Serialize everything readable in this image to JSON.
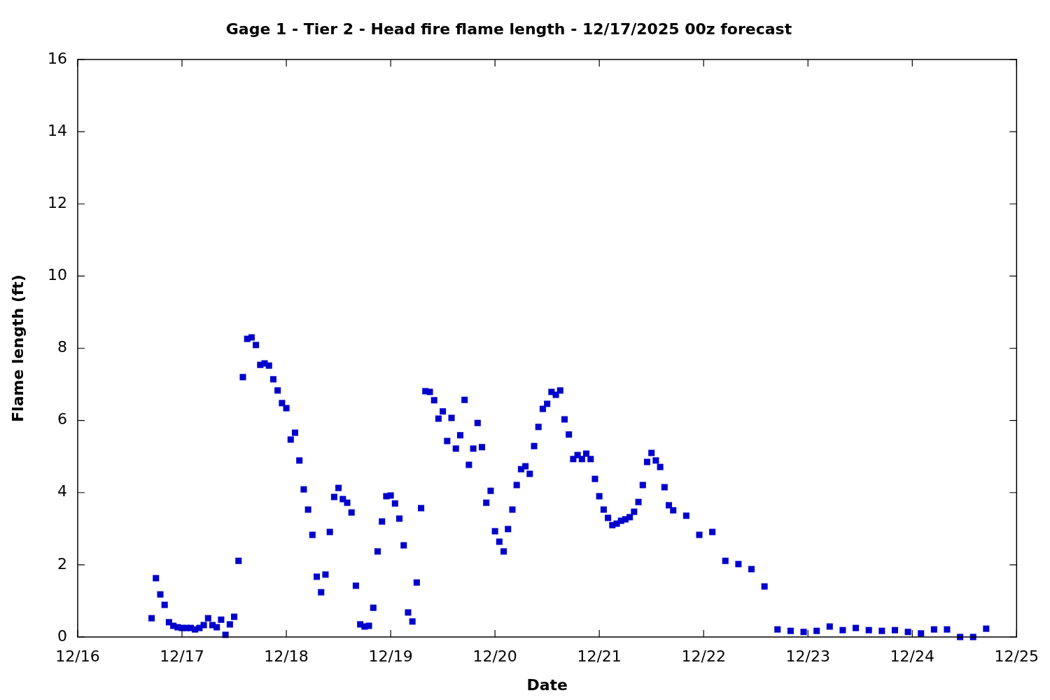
{
  "chart_data": {
    "type": "scatter",
    "title": "Gage 1 - Tier 2 - Head fire flame length - 12/17/2025 00z forecast",
    "xlabel": "Date",
    "ylabel": "Flame length (ft)",
    "marker": "square",
    "color": "#0000cc",
    "xlim": [
      "--12-16",
      "--12-25"
    ],
    "xticks": [
      {
        "value": "--12-16",
        "label": "12/16"
      },
      {
        "value": "--12-17",
        "label": "12/17"
      },
      {
        "value": "--12-18",
        "label": "12/18"
      },
      {
        "value": "--12-19",
        "label": "12/19"
      },
      {
        "value": "--12-20",
        "label": "12/20"
      },
      {
        "value": "--12-21",
        "label": "12/21"
      },
      {
        "value": "--12-22",
        "label": "12/22"
      },
      {
        "value": "--12-23",
        "label": "12/23"
      },
      {
        "value": "--12-24",
        "label": "12/24"
      },
      {
        "value": "--12-25",
        "label": "12/25"
      }
    ],
    "ylim": [
      0,
      16
    ],
    "yticks": [
      0,
      2,
      4,
      6,
      8,
      10,
      12,
      14,
      16
    ],
    "x": [
      "--12-16T17:00",
      "--12-16T18:00",
      "--12-16T19:00",
      "--12-16T20:00",
      "--12-16T21:00",
      "--12-16T22:00",
      "--12-16T23:00",
      "--12-17T00:00",
      "--12-17T01:00",
      "--12-17T02:00",
      "--12-17T03:00",
      "--12-17T04:00",
      "--12-17T05:00",
      "--12-17T06:00",
      "--12-17T07:00",
      "--12-17T08:00",
      "--12-17T09:00",
      "--12-17T10:00",
      "--12-17T11:00",
      "--12-17T12:00",
      "--12-17T13:00",
      "--12-17T14:00",
      "--12-17T15:00",
      "--12-17T16:00",
      "--12-17T17:00",
      "--12-17T18:00",
      "--12-17T19:00",
      "--12-17T20:00",
      "--12-17T21:00",
      "--12-17T22:00",
      "--12-17T23:00",
      "--12-18T00:00",
      "--12-18T01:00",
      "--12-18T02:00",
      "--12-18T03:00",
      "--12-18T04:00",
      "--12-18T05:00",
      "--12-18T06:00",
      "--12-18T07:00",
      "--12-18T08:00",
      "--12-18T09:00",
      "--12-18T10:00",
      "--12-18T11:00",
      "--12-18T12:00",
      "--12-18T13:00",
      "--12-18T14:00",
      "--12-18T15:00",
      "--12-18T16:00",
      "--12-18T17:00",
      "--12-18T18:00",
      "--12-18T19:00",
      "--12-18T20:00",
      "--12-18T21:00",
      "--12-18T22:00",
      "--12-18T23:00",
      "--12-19T00:00",
      "--12-19T01:00",
      "--12-19T02:00",
      "--12-19T03:00",
      "--12-19T04:00",
      "--12-19T05:00",
      "--12-19T06:00",
      "--12-19T07:00",
      "--12-19T08:00",
      "--12-19T09:00",
      "--12-19T10:00",
      "--12-19T11:00",
      "--12-19T12:00",
      "--12-19T13:00",
      "--12-19T14:00",
      "--12-19T15:00",
      "--12-19T16:00",
      "--12-19T17:00",
      "--12-19T18:00",
      "--12-19T19:00",
      "--12-19T20:00",
      "--12-19T21:00",
      "--12-19T22:00",
      "--12-19T23:00",
      "--12-20T00:00",
      "--12-20T01:00",
      "--12-20T02:00",
      "--12-20T03:00",
      "--12-20T04:00",
      "--12-20T05:00",
      "--12-20T06:00",
      "--12-20T07:00",
      "--12-20T08:00",
      "--12-20T09:00",
      "--12-20T10:00",
      "--12-20T11:00",
      "--12-20T12:00",
      "--12-20T13:00",
      "--12-20T14:00",
      "--12-20T15:00",
      "--12-20T16:00",
      "--12-20T17:00",
      "--12-20T18:00",
      "--12-20T19:00",
      "--12-20T20:00",
      "--12-20T21:00",
      "--12-20T22:00",
      "--12-20T23:00",
      "--12-21T00:00",
      "--12-21T01:00",
      "--12-21T02:00",
      "--12-21T03:00",
      "--12-21T04:00",
      "--12-21T05:00",
      "--12-21T06:00",
      "--12-21T07:00",
      "--12-21T08:00",
      "--12-21T09:00",
      "--12-21T10:00",
      "--12-21T11:00",
      "--12-21T12:00",
      "--12-21T13:00",
      "--12-21T14:00",
      "--12-21T15:00",
      "--12-21T16:00",
      "--12-21T17:00",
      "--12-21T20:00",
      "--12-21T23:00",
      "--12-22T02:00",
      "--12-22T05:00",
      "--12-22T08:00",
      "--12-22T11:00",
      "--12-22T14:00",
      "--12-22T17:00",
      "--12-22T20:00",
      "--12-22T23:00",
      "--12-23T02:00",
      "--12-23T05:00",
      "--12-23T08:00",
      "--12-23T11:00",
      "--12-23T14:00",
      "--12-23T17:00",
      "--12-23T20:00",
      "--12-23T23:00",
      "--12-24T02:00",
      "--12-24T05:00",
      "--12-24T08:00",
      "--12-24T11:00",
      "--12-24T14:00",
      "--12-24T17:00"
    ],
    "values": [
      0.52,
      1.63,
      1.18,
      0.89,
      0.41,
      0.31,
      0.27,
      0.25,
      0.25,
      0.25,
      0.21,
      0.25,
      0.33,
      0.52,
      0.33,
      0.27,
      0.48,
      0.06,
      0.35,
      0.56,
      2.11,
      7.2,
      8.26,
      8.3,
      8.09,
      7.54,
      7.58,
      7.52,
      7.14,
      6.83,
      6.48,
      6.34,
      5.47,
      5.66,
      4.89,
      4.09,
      3.53,
      2.83,
      1.67,
      1.24,
      1.73,
      2.91,
      3.88,
      4.13,
      3.82,
      3.72,
      3.45,
      1.42,
      0.35,
      0.29,
      0.31,
      0.81,
      2.37,
      3.2,
      3.9,
      3.92,
      3.7,
      3.28,
      2.54,
      0.68,
      0.43,
      1.51,
      3.57,
      6.81,
      6.79,
      6.56,
      6.05,
      6.25,
      5.43,
      6.07,
      5.22,
      5.59,
      6.57,
      4.77,
      5.22,
      5.93,
      5.26,
      3.72,
      4.05,
      2.93,
      2.64,
      2.37,
      2.99,
      3.53,
      4.21,
      4.65,
      4.73,
      4.52,
      5.29,
      5.82,
      6.32,
      6.46,
      6.79,
      6.71,
      6.83,
      6.03,
      5.61,
      4.93,
      5.04,
      4.93,
      5.08,
      4.93,
      4.38,
      3.9,
      3.53,
      3.3,
      3.1,
      3.14,
      3.22,
      3.26,
      3.32,
      3.47,
      3.74,
      4.21,
      4.85,
      5.1,
      4.89,
      4.71,
      4.15,
      3.65,
      3.51,
      3.36,
      2.83,
      2.91,
      2.11,
      2.02,
      1.88,
      1.4,
      0.21,
      0.17,
      0.14,
      0.17,
      0.29,
      0.19,
      0.25,
      0.19,
      0.17,
      0.19,
      0.14,
      0.1,
      0.21,
      0.21,
      0,
      0,
      0.23
    ]
  }
}
